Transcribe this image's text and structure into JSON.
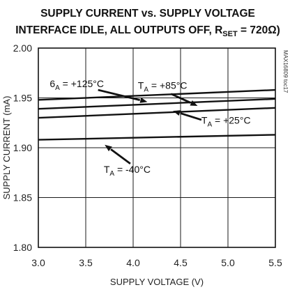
{
  "chart_data": {
    "type": "line",
    "title_line1": "SUPPLY CURRENT vs. SUPPLY VOLTAGE",
    "title_line2_prefix": "INTERFACE IDLE, ALL OUTPUTS OFF, R",
    "title_line2_sub": "SET",
    "title_line2_suffix": " = 720Ω)",
    "xlabel": "SUPPLY VOLTAGE (V)",
    "ylabel": "SUPPLY CURRENT (mA)",
    "xlim": [
      3.0,
      5.5
    ],
    "ylim": [
      1.8,
      2.0
    ],
    "xticks": [
      3.0,
      3.5,
      4.0,
      4.5,
      5.0,
      5.5
    ],
    "xtick_labels": [
      "3.0",
      "3.5",
      "4.0",
      "4.5",
      "5.0",
      "5.5"
    ],
    "yticks": [
      1.8,
      1.85,
      1.9,
      1.95,
      2.0
    ],
    "ytick_labels": [
      "1.80",
      "1.85",
      "1.90",
      "1.95",
      "2.00"
    ],
    "grid": true,
    "chart_code": "MAX16809 toc17",
    "series": [
      {
        "name": "+125°C",
        "x": [
          3.0,
          5.5
        ],
        "y": [
          1.948,
          1.958
        ]
      },
      {
        "name": "+85°C",
        "x": [
          3.0,
          5.5
        ],
        "y": [
          1.939,
          1.949
        ]
      },
      {
        "name": "+25°C",
        "x": [
          3.0,
          5.5
        ],
        "y": [
          1.93,
          1.94
        ]
      },
      {
        "name": "-40°C",
        "x": [
          3.0,
          5.5
        ],
        "y": [
          1.908,
          1.913
        ]
      }
    ],
    "annotations": [
      {
        "series": 0,
        "prefix": "6",
        "sub": "A",
        "value": " = +125°C",
        "text_at": [
          3.12,
          1.961
        ],
        "anchor": "start",
        "arrow_from": [
          3.63,
          1.958
        ],
        "arrow_to": [
          4.15,
          1.946
        ]
      },
      {
        "series": 1,
        "prefix": "T",
        "sub": "A",
        "value": " = +85°C",
        "text_at": [
          4.05,
          1.959
        ],
        "anchor": "start",
        "arrow_from": [
          4.4,
          1.954
        ],
        "arrow_to": [
          4.68,
          1.942
        ]
      },
      {
        "series": 2,
        "prefix": "T",
        "sub": "A",
        "value": " = +25°C",
        "text_at": [
          4.72,
          1.924
        ],
        "anchor": "start",
        "arrow_from": [
          4.72,
          1.928
        ],
        "arrow_to": [
          4.42,
          1.937
        ]
      },
      {
        "series": 3,
        "prefix": "T",
        "sub": "A",
        "value": " = -40°C",
        "text_at": [
          3.69,
          1.875
        ],
        "anchor": "start",
        "arrow_from": [
          3.97,
          1.884
        ],
        "arrow_to": [
          3.7,
          1.903
        ]
      }
    ]
  }
}
